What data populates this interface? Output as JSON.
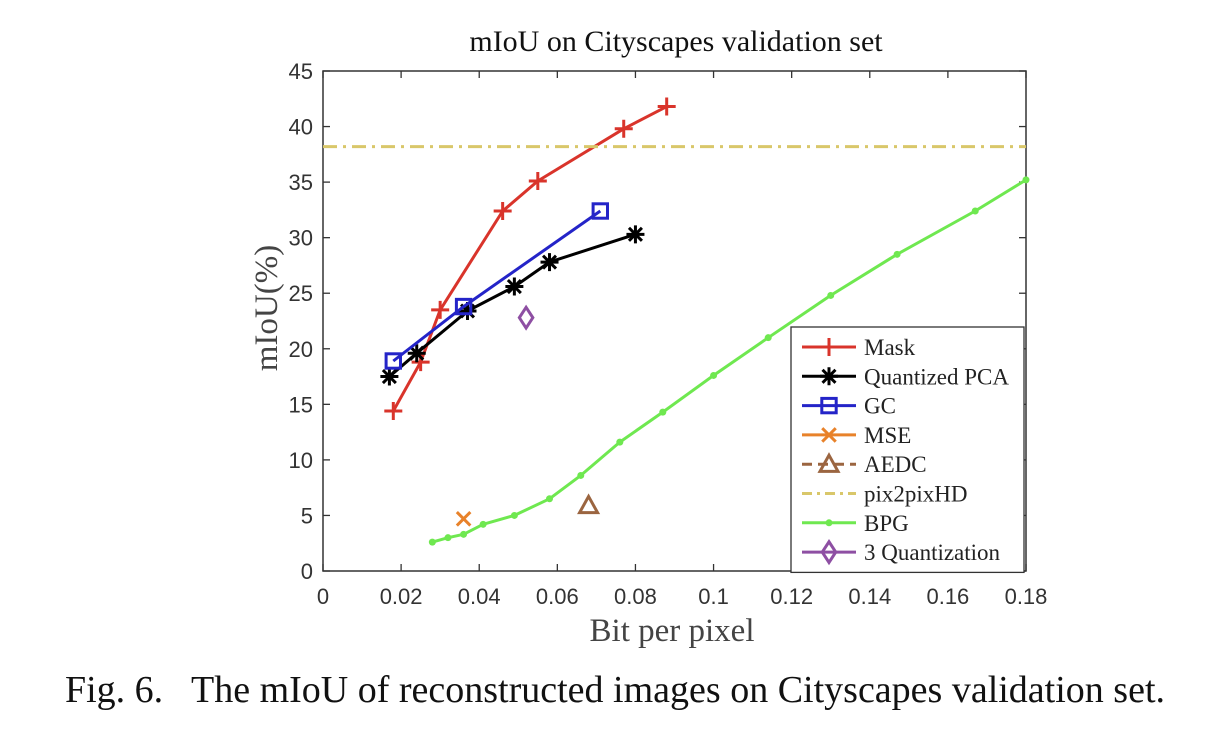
{
  "chart_data": {
    "type": "line",
    "title": "mIoU on Cityscapes validation set",
    "xlabel": "Bit per pixel",
    "ylabel": "mIoU(%)",
    "xlim": [
      0,
      0.18
    ],
    "ylim": [
      0,
      45
    ],
    "xticks": [
      "0",
      "0.02",
      "0.04",
      "0.06",
      "0.08",
      "0.1",
      "0.12",
      "0.14",
      "0.16",
      "0.18"
    ],
    "yticks": [
      "0",
      "5",
      "10",
      "15",
      "20",
      "25",
      "30",
      "35",
      "40",
      "45"
    ],
    "grid": false,
    "legend_position": "bottom-right",
    "series": [
      {
        "name": "Mask",
        "color": "#d9342b",
        "marker": "plus",
        "line": "solid",
        "x": [
          0.018,
          0.025,
          0.03,
          0.046,
          0.055,
          0.077,
          0.088
        ],
        "y": [
          14.4,
          18.8,
          23.5,
          32.4,
          35.1,
          39.8,
          41.8
        ]
      },
      {
        "name": "Quantized PCA",
        "color": "#000000",
        "marker": "asterisk",
        "line": "solid",
        "x": [
          0.017,
          0.024,
          0.037,
          0.049,
          0.058,
          0.08
        ],
        "y": [
          17.5,
          19.6,
          23.4,
          25.6,
          27.8,
          30.3
        ]
      },
      {
        "name": "GC",
        "color": "#2424c8",
        "marker": "square",
        "line": "solid",
        "x": [
          0.018,
          0.036,
          0.071
        ],
        "y": [
          18.9,
          23.8,
          32.4
        ]
      },
      {
        "name": "MSE",
        "color": "#e8822a",
        "marker": "x",
        "line": "solid",
        "x": [
          0.036
        ],
        "y": [
          4.7
        ]
      },
      {
        "name": "AEDC",
        "color": "#9b6540",
        "marker": "triangle",
        "line": "dashed",
        "x": [
          0.068
        ],
        "y": [
          5.9
        ]
      },
      {
        "name": "pix2pixHD",
        "color": "#d9c76a",
        "marker": "none",
        "line": "dashdot",
        "x": [
          0,
          0.18
        ],
        "y": [
          38.2,
          38.2
        ]
      },
      {
        "name": "BPG",
        "color": "#6fe850",
        "marker": "dot",
        "line": "solid",
        "x": [
          0.028,
          0.032,
          0.036,
          0.041,
          0.049,
          0.058,
          0.066,
          0.076,
          0.087,
          0.1,
          0.114,
          0.13,
          0.147,
          0.167,
          0.18
        ],
        "y": [
          2.6,
          3.0,
          3.3,
          4.2,
          5.0,
          6.5,
          8.6,
          11.6,
          14.3,
          17.6,
          21.0,
          24.8,
          28.5,
          32.4,
          35.2
        ]
      },
      {
        "name": "3 Quantization",
        "color": "#8e4fa3",
        "marker": "diamond",
        "line": "solid",
        "x": [
          0.052
        ],
        "y": [
          22.8
        ]
      }
    ]
  },
  "caption": "Fig. 6.   The mIoU of reconstructed images on Cityscapes validation set."
}
